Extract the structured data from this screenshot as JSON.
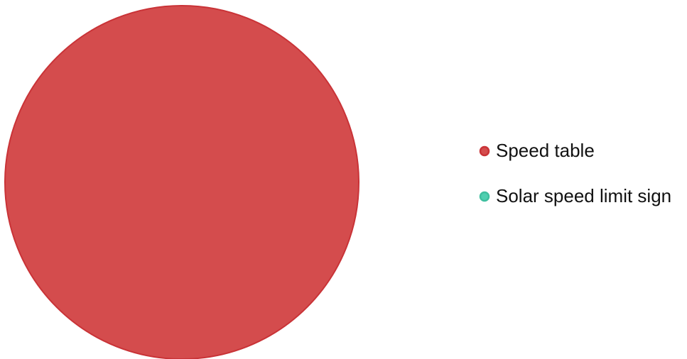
{
  "chart_data": {
    "type": "pie",
    "title": "",
    "labels": [
      "Speed table",
      "Solar speed limit sign"
    ],
    "values": [
      1,
      0
    ],
    "colors": [
      "#d44c4d",
      "#4fcfb0"
    ],
    "border_colors": [
      "#c93337",
      "#3fbf9f"
    ],
    "legend": {
      "position": "right",
      "items": [
        {
          "label": "Speed table",
          "color": "#d44c4d",
          "border": "#c93337"
        },
        {
          "label": "Solar speed limit sign",
          "color": "#4fcfb0",
          "border": "#3fbf9f"
        }
      ]
    }
  }
}
